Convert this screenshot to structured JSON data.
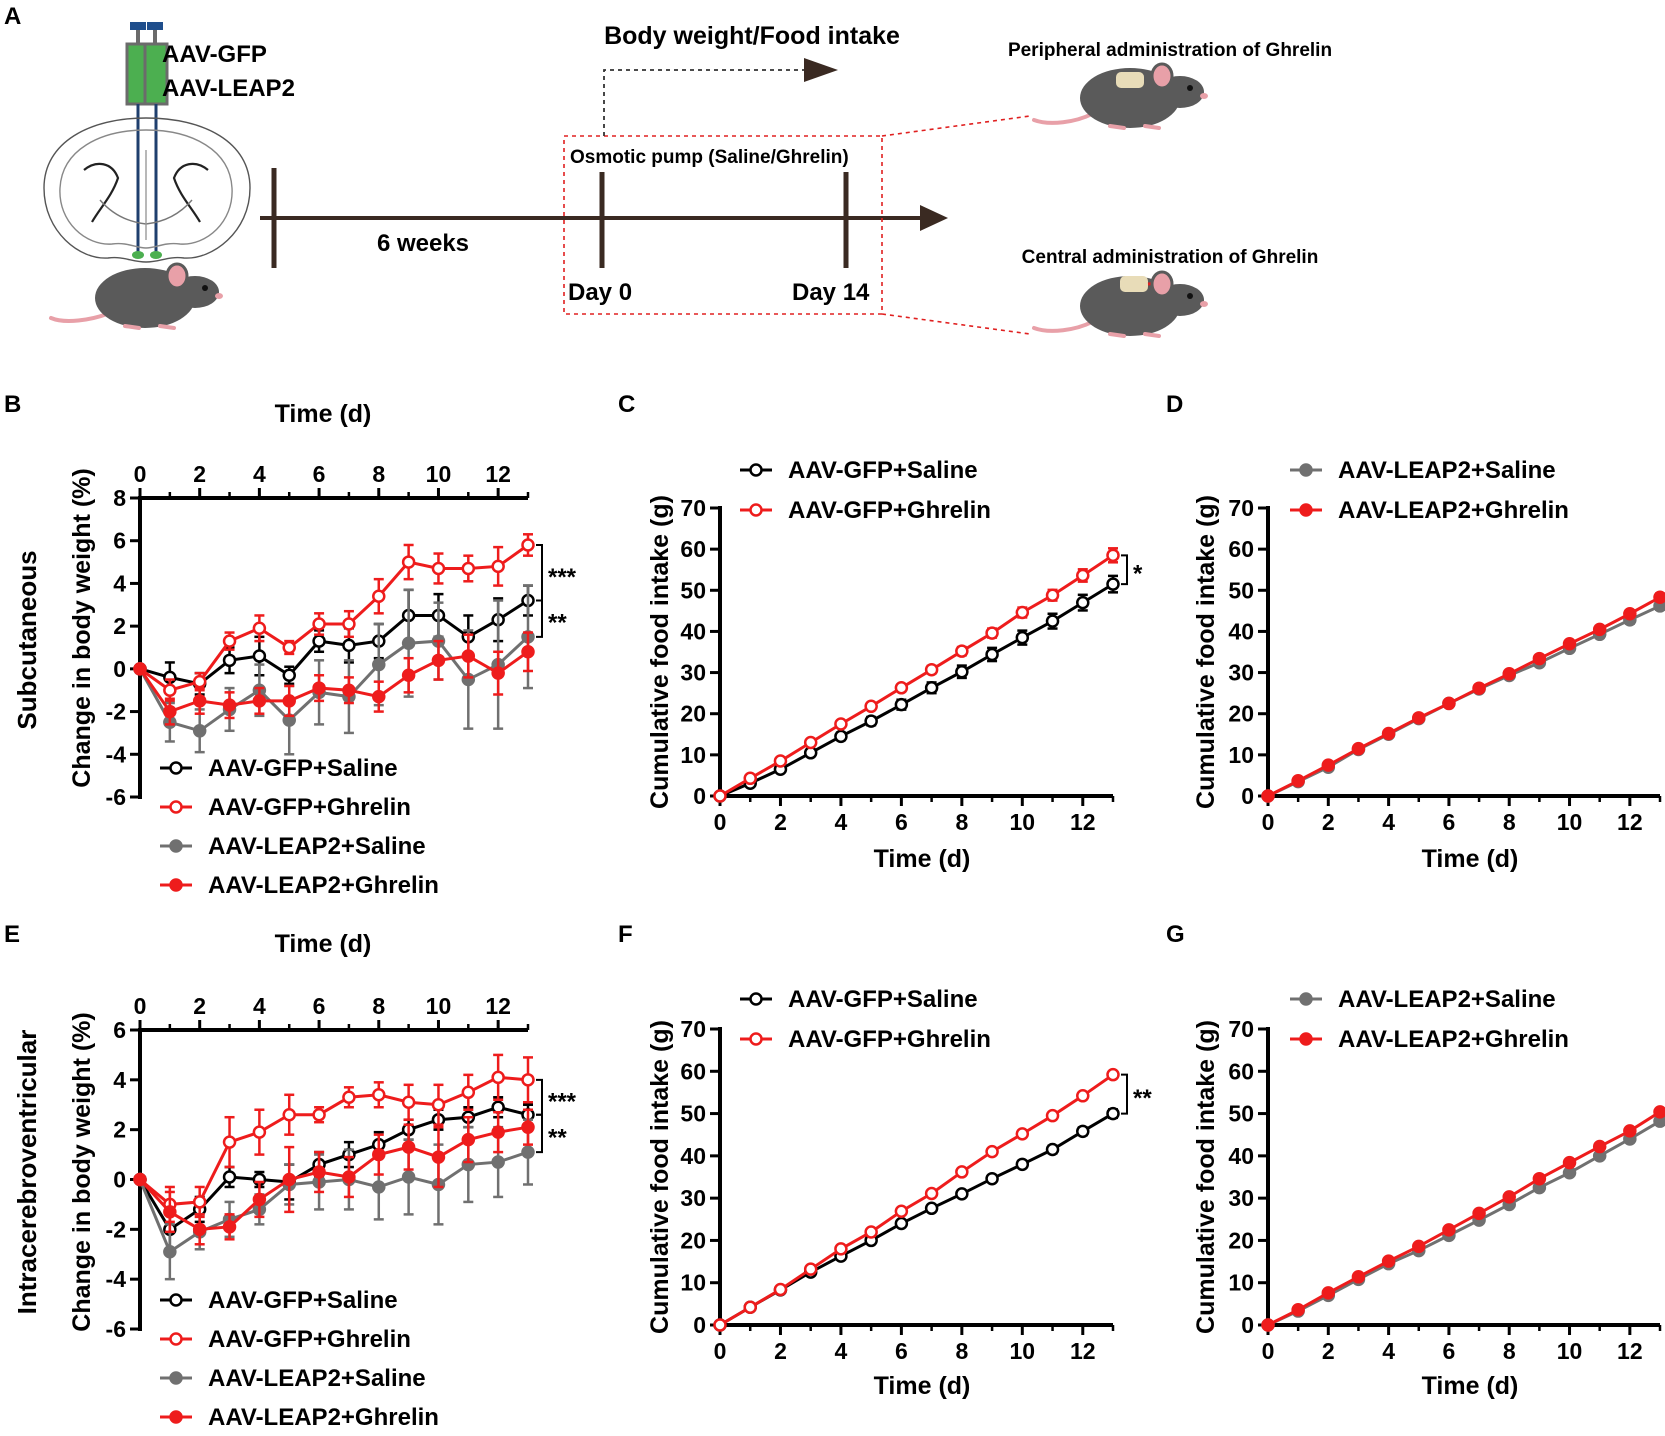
{
  "colors": {
    "black": "#000000",
    "red": "#ee1c1c",
    "gray": "#707070",
    "axis": "#000000"
  },
  "panel_a": {
    "letter": "A",
    "virus_label_1": "AAV-GFP",
    "virus_label_2": "AAV-LEAP2",
    "duration_label": "6 weeks",
    "measure_label": "Body weight/Food intake",
    "pump_label": "Osmotic pump (Saline/Ghrelin)",
    "day0_label": "Day 0",
    "day14_label": "Day 14",
    "peripheral_label": "Peripheral administration of Ghrelin",
    "central_label": "Central administration of Ghrelin",
    "icons": [
      "syringe-icon",
      "brain-section-icon",
      "mouse-icon"
    ]
  },
  "chart_data": [
    {
      "id": "B",
      "type": "line",
      "row_label": "Subcutaneous",
      "title": "Time (d)",
      "xlabel": "Time (d)",
      "xaxis_position": "top",
      "ylabel": "Change in body weight (%)",
      "xlim": [
        0,
        13
      ],
      "ylim": [
        -6,
        8
      ],
      "xticks": [
        "0",
        "2",
        "4",
        "6",
        "8",
        "10",
        "12"
      ],
      "yticks": [
        "-6",
        "-4",
        "-2",
        "0",
        "2",
        "4",
        "6",
        "8"
      ],
      "x": [
        0,
        1,
        2,
        3,
        4,
        5,
        6,
        7,
        8,
        9,
        10,
        11,
        12,
        13
      ],
      "series": [
        {
          "name": "AAV-GFP+Saline",
          "color": "#000000",
          "marker": "open",
          "values": [
            0,
            -0.4,
            -0.7,
            0.4,
            0.6,
            -0.3,
            1.3,
            1.1,
            1.3,
            2.5,
            2.5,
            1.5,
            2.3,
            3.2
          ],
          "errors": [
            0,
            0.7,
            0.5,
            0.6,
            0.9,
            0.4,
            0.5,
            0.8,
            0.8,
            1.2,
            1.0,
            1.0,
            1.0,
            0.7
          ]
        },
        {
          "name": "AAV-GFP+Ghrelin",
          "color": "#ee1c1c",
          "marker": "open",
          "values": [
            0,
            -1.0,
            -0.6,
            1.3,
            1.9,
            1.0,
            2.1,
            2.1,
            3.4,
            5.0,
            4.7,
            4.7,
            4.8,
            5.8
          ],
          "errors": [
            0,
            0.5,
            0.4,
            0.4,
            0.6,
            0.3,
            0.5,
            0.6,
            0.8,
            0.8,
            0.7,
            0.6,
            0.9,
            0.5
          ]
        },
        {
          "name": "AAV-LEAP2+Saline",
          "color": "#707070",
          "marker": "filled",
          "values": [
            0,
            -2.5,
            -2.9,
            -1.9,
            -1.0,
            -2.4,
            -1.1,
            -1.3,
            0.2,
            1.2,
            1.3,
            -0.5,
            0.2,
            1.5
          ],
          "errors": [
            0,
            0.9,
            1.0,
            1.0,
            1.2,
            1.6,
            1.5,
            1.7,
            1.9,
            2.5,
            1.8,
            2.3,
            3.0,
            2.4
          ]
        },
        {
          "name": "AAV-LEAP2+Ghrelin",
          "color": "#ee1c1c",
          "marker": "filled",
          "values": [
            0,
            -2.0,
            -1.5,
            -1.7,
            -1.5,
            -1.5,
            -0.9,
            -1.0,
            -1.3,
            -0.3,
            0.4,
            0.6,
            -0.2,
            0.8
          ],
          "errors": [
            0,
            0.6,
            0.6,
            0.6,
            0.6,
            0.7,
            0.6,
            0.6,
            0.7,
            0.8,
            0.9,
            1.0,
            1.0,
            0.9
          ]
        }
      ],
      "brackets": [
        {
          "label": "***",
          "y_from": 5.8,
          "y_to": 3.2
        },
        {
          "label": "**",
          "y_from": 3.2,
          "y_to": 1.5
        }
      ]
    },
    {
      "id": "C",
      "type": "line",
      "xlabel": "Time (d)",
      "ylabel": "Cumulative food intake (g)",
      "xlim": [
        0,
        13
      ],
      "ylim": [
        0,
        70
      ],
      "xticks": [
        "0",
        "2",
        "4",
        "6",
        "8",
        "10",
        "12"
      ],
      "yticks": [
        "0",
        "10",
        "20",
        "30",
        "40",
        "50",
        "60",
        "70"
      ],
      "x": [
        0,
        1,
        2,
        3,
        4,
        5,
        6,
        7,
        8,
        9,
        10,
        11,
        12,
        13
      ],
      "series": [
        {
          "name": "AAV-GFP+Saline",
          "color": "#000000",
          "marker": "open",
          "values": [
            0,
            3.1,
            6.5,
            10.5,
            14.5,
            18.2,
            22.2,
            26.3,
            30.2,
            34.4,
            38.5,
            42.5,
            47.0,
            51.5
          ],
          "errors": [
            0,
            0.4,
            0.5,
            0.7,
            0.9,
            1.0,
            1.2,
            1.3,
            1.5,
            1.6,
            1.7,
            1.8,
            1.9,
            2.0
          ]
        },
        {
          "name": "AAV-GFP+Ghrelin",
          "color": "#ee1c1c",
          "marker": "open",
          "values": [
            0,
            4.3,
            8.5,
            13.0,
            17.5,
            21.8,
            26.3,
            30.7,
            35.2,
            39.6,
            44.6,
            48.8,
            53.6,
            58.5
          ],
          "errors": [
            0,
            0.3,
            0.4,
            0.5,
            0.6,
            0.7,
            0.8,
            0.9,
            1.0,
            1.1,
            1.2,
            1.3,
            1.5,
            1.7
          ]
        }
      ],
      "brackets": [
        {
          "label": "*",
          "y_from": 58.5,
          "y_to": 51.5
        }
      ]
    },
    {
      "id": "D",
      "type": "line",
      "xlabel": "Time (d)",
      "ylabel": "Cumulative food intake (g)",
      "xlim": [
        0,
        13
      ],
      "ylim": [
        0,
        70
      ],
      "xticks": [
        "0",
        "2",
        "4",
        "6",
        "8",
        "10",
        "12"
      ],
      "yticks": [
        "0",
        "10",
        "20",
        "30",
        "40",
        "50",
        "60",
        "70"
      ],
      "x": [
        0,
        1,
        2,
        3,
        4,
        5,
        6,
        7,
        8,
        9,
        10,
        11,
        12,
        13
      ],
      "series": [
        {
          "name": "AAV-LEAP2+Saline",
          "color": "#707070",
          "marker": "filled",
          "values": [
            0,
            3.5,
            7.0,
            11.3,
            15.0,
            18.8,
            22.5,
            26.0,
            29.3,
            32.4,
            35.9,
            39.3,
            42.8,
            46.2
          ],
          "errors": [
            0,
            0.3,
            0.4,
            0.5,
            0.5,
            0.5,
            0.6,
            0.6,
            0.7,
            0.7,
            0.8,
            0.8,
            0.9,
            0.9
          ]
        },
        {
          "name": "AAV-LEAP2+Ghrelin",
          "color": "#ee1c1c",
          "marker": "filled",
          "values": [
            0,
            3.7,
            7.5,
            11.5,
            15.2,
            19.0,
            22.5,
            26.2,
            29.7,
            33.4,
            37.0,
            40.5,
            44.3,
            48.3
          ],
          "errors": [
            0,
            0.3,
            0.4,
            0.4,
            0.5,
            0.5,
            0.5,
            0.6,
            0.6,
            0.7,
            0.7,
            0.8,
            0.8,
            0.9
          ]
        }
      ],
      "brackets": []
    },
    {
      "id": "E",
      "type": "line",
      "row_label": "Intracerebroventricular",
      "title": "Time (d)",
      "xlabel": "Time (d)",
      "xaxis_position": "top",
      "ylabel": "Change in body weight (%)",
      "xlim": [
        0,
        13
      ],
      "ylim": [
        -6,
        6
      ],
      "xticks": [
        "0",
        "2",
        "4",
        "6",
        "8",
        "10",
        "12"
      ],
      "yticks": [
        "-6",
        "-4",
        "-2",
        "0",
        "2",
        "4",
        "6"
      ],
      "x": [
        0,
        1,
        2,
        3,
        4,
        5,
        6,
        7,
        8,
        9,
        10,
        11,
        12,
        13
      ],
      "series": [
        {
          "name": "AAV-GFP+Saline",
          "color": "#000000",
          "marker": "open",
          "values": [
            0,
            -2.0,
            -1.2,
            0.1,
            0.0,
            -0.1,
            0.6,
            1.0,
            1.4,
            2.0,
            2.4,
            2.5,
            2.9,
            2.6
          ],
          "errors": [
            0,
            0.9,
            0.5,
            0.4,
            0.3,
            0.7,
            0.5,
            0.5,
            0.5,
            0.4,
            0.4,
            0.4,
            0.4,
            0.4
          ]
        },
        {
          "name": "AAV-GFP+Ghrelin",
          "color": "#ee1c1c",
          "marker": "open",
          "values": [
            0,
            -1.0,
            -0.9,
            1.5,
            1.9,
            2.6,
            2.6,
            3.3,
            3.4,
            3.1,
            3.0,
            3.5,
            4.1,
            4.0
          ],
          "errors": [
            0,
            0.7,
            0.6,
            1.0,
            0.9,
            0.8,
            0.3,
            0.4,
            0.5,
            0.7,
            0.8,
            0.7,
            0.9,
            0.9
          ]
        },
        {
          "name": "AAV-LEAP2+Saline",
          "color": "#707070",
          "marker": "filled",
          "values": [
            0,
            -2.9,
            -2.1,
            -1.6,
            -1.2,
            -0.2,
            -0.1,
            0.0,
            -0.3,
            0.1,
            -0.2,
            0.6,
            0.7,
            1.1
          ],
          "errors": [
            0,
            1.1,
            0.7,
            0.7,
            0.6,
            0.8,
            1.1,
            1.2,
            1.3,
            1.5,
            1.6,
            1.5,
            1.4,
            1.3
          ]
        },
        {
          "name": "AAV-LEAP2+Ghrelin",
          "color": "#ee1c1c",
          "marker": "filled",
          "values": [
            0,
            -1.3,
            -2.0,
            -1.9,
            -0.8,
            0.0,
            0.3,
            0.1,
            1.0,
            1.3,
            0.9,
            1.6,
            1.9,
            2.1
          ],
          "errors": [
            0,
            0.8,
            0.6,
            0.5,
            0.7,
            1.3,
            0.8,
            0.8,
            0.8,
            0.9,
            1.2,
            0.9,
            0.8,
            0.7
          ]
        }
      ],
      "brackets": [
        {
          "label": "***",
          "y_from": 4.0,
          "y_to": 2.6
        },
        {
          "label": "**",
          "y_from": 2.6,
          "y_to": 1.1
        }
      ]
    },
    {
      "id": "F",
      "type": "line",
      "xlabel": "Time (d)",
      "ylabel": "Cumulative food intake (g)",
      "xlim": [
        0,
        13
      ],
      "ylim": [
        0,
        70
      ],
      "xticks": [
        "0",
        "2",
        "4",
        "6",
        "8",
        "10",
        "12"
      ],
      "yticks": [
        "0",
        "10",
        "20",
        "30",
        "40",
        "50",
        "60",
        "70"
      ],
      "x": [
        0,
        1,
        2,
        3,
        4,
        5,
        6,
        7,
        8,
        9,
        10,
        11,
        12,
        13
      ],
      "series": [
        {
          "name": "AAV-GFP+Saline",
          "color": "#000000",
          "marker": "open",
          "values": [
            0,
            4.2,
            8.3,
            12.5,
            16.3,
            20.0,
            24.0,
            27.6,
            31.0,
            34.6,
            38.0,
            41.5,
            45.8,
            50.0
          ],
          "errors": [
            0,
            0.3,
            0.3,
            0.4,
            0.5,
            0.5,
            0.6,
            0.6,
            0.7,
            0.7,
            0.8,
            0.9,
            0.9,
            1.0
          ]
        },
        {
          "name": "AAV-GFP+Ghrelin",
          "color": "#ee1c1c",
          "marker": "open",
          "values": [
            0,
            4.2,
            8.4,
            13.2,
            18.0,
            22.0,
            26.9,
            31.1,
            36.2,
            41.0,
            45.2,
            49.5,
            54.2,
            59.2
          ],
          "errors": [
            0,
            0.2,
            0.3,
            0.3,
            0.4,
            0.4,
            0.4,
            0.5,
            0.5,
            0.5,
            0.6,
            0.6,
            0.6,
            0.7
          ]
        }
      ],
      "brackets": [
        {
          "label": "**",
          "y_from": 59.2,
          "y_to": 50.0
        }
      ]
    },
    {
      "id": "G",
      "type": "line",
      "xlabel": "Time (d)",
      "ylabel": "Cumulative food intake (g)",
      "xlim": [
        0,
        13
      ],
      "ylim": [
        0,
        70
      ],
      "xticks": [
        "0",
        "2",
        "4",
        "6",
        "8",
        "10",
        "12"
      ],
      "yticks": [
        "0",
        "10",
        "20",
        "30",
        "40",
        "50",
        "60",
        "70"
      ],
      "x": [
        0,
        1,
        2,
        3,
        4,
        5,
        6,
        7,
        8,
        9,
        10,
        11,
        12,
        13
      ],
      "series": [
        {
          "name": "AAV-LEAP2+Saline",
          "color": "#707070",
          "marker": "filled",
          "values": [
            0,
            3.3,
            7.0,
            10.8,
            14.5,
            17.6,
            21.2,
            24.8,
            28.5,
            32.5,
            36.0,
            40.0,
            44.0,
            48.2
          ],
          "errors": [
            0,
            0.3,
            0.3,
            0.4,
            0.4,
            0.5,
            0.5,
            0.5,
            0.6,
            0.6,
            0.7,
            0.7,
            0.8,
            0.8
          ]
        },
        {
          "name": "AAV-LEAP2+Ghrelin",
          "color": "#ee1c1c",
          "marker": "filled",
          "values": [
            0,
            3.6,
            7.6,
            11.4,
            15.1,
            18.6,
            22.5,
            26.4,
            30.3,
            34.6,
            38.4,
            42.2,
            45.9,
            50.4
          ],
          "errors": [
            0,
            0.3,
            0.3,
            0.4,
            0.4,
            0.4,
            0.5,
            0.5,
            0.5,
            0.6,
            0.6,
            0.6,
            0.7,
            0.7
          ]
        }
      ],
      "brackets": []
    }
  ]
}
